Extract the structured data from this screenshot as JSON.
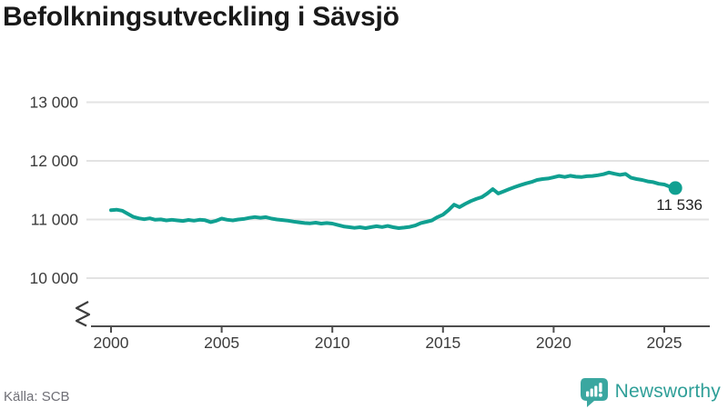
{
  "title": "Befolkningsutveckling i Sävsjö",
  "footer": {
    "source": "Källa: SCB",
    "brand": "Newsworthy",
    "brand_color": "#3aa7a0",
    "brand_text_color": "#2f9f98"
  },
  "chart_data": {
    "type": "line",
    "title": "Befolkningsutveckling i Sävsjö",
    "xlabel": "",
    "ylabel": "",
    "grid": "horizontal",
    "axis_break": true,
    "legend": "none",
    "xlim": [
      1999.5,
      2026.5
    ],
    "ylim": [
      10000,
      13000
    ],
    "grid_color": "#e3e3e3",
    "axis_color": "#4d4d4d",
    "label_color": "#3d3d3d",
    "annotation_color": "#1f1f1f",
    "end_label": "11 536",
    "end_value": 11536,
    "y_ticks": [
      {
        "value": 13000,
        "label": "13 000"
      },
      {
        "value": 12000,
        "label": "12 000"
      },
      {
        "value": 11000,
        "label": "11 000"
      },
      {
        "value": 10000,
        "label": "10 000"
      }
    ],
    "x_ticks": [
      {
        "value": 2000,
        "label": "2000"
      },
      {
        "value": 2005,
        "label": "2005"
      },
      {
        "value": 2010,
        "label": "2010"
      },
      {
        "value": 2015,
        "label": "2015"
      },
      {
        "value": 2020,
        "label": "2020"
      },
      {
        "value": 2025,
        "label": "2025"
      }
    ],
    "series": [
      {
        "name": "Befolkning i Sävsjö",
        "color": "#10a091",
        "points": [
          [
            2000.0,
            11160
          ],
          [
            2000.25,
            11168
          ],
          [
            2000.5,
            11150
          ],
          [
            2000.75,
            11100
          ],
          [
            2001.0,
            11046
          ],
          [
            2001.25,
            11020
          ],
          [
            2001.5,
            11005
          ],
          [
            2001.75,
            11020
          ],
          [
            2002.0,
            10995
          ],
          [
            2002.25,
            11002
          ],
          [
            2002.5,
            10985
          ],
          [
            2002.75,
            10995
          ],
          [
            2003.0,
            10985
          ],
          [
            2003.25,
            10975
          ],
          [
            2003.5,
            10992
          ],
          [
            2003.75,
            10980
          ],
          [
            2004.0,
            10996
          ],
          [
            2004.25,
            10988
          ],
          [
            2004.5,
            10955
          ],
          [
            2004.75,
            10978
          ],
          [
            2005.0,
            11015
          ],
          [
            2005.25,
            10995
          ],
          [
            2005.5,
            10985
          ],
          [
            2005.75,
            11000
          ],
          [
            2006.0,
            11010
          ],
          [
            2006.25,
            11028
          ],
          [
            2006.5,
            11042
          ],
          [
            2006.75,
            11030
          ],
          [
            2007.0,
            11040
          ],
          [
            2007.25,
            11015
          ],
          [
            2007.5,
            11000
          ],
          [
            2007.75,
            10990
          ],
          [
            2008.0,
            10980
          ],
          [
            2008.25,
            10965
          ],
          [
            2008.5,
            10952
          ],
          [
            2008.75,
            10940
          ],
          [
            2009.0,
            10935
          ],
          [
            2009.25,
            10946
          ],
          [
            2009.5,
            10930
          ],
          [
            2009.75,
            10940
          ],
          [
            2010.0,
            10930
          ],
          [
            2010.25,
            10905
          ],
          [
            2010.5,
            10882
          ],
          [
            2010.75,
            10870
          ],
          [
            2011.0,
            10858
          ],
          [
            2011.25,
            10868
          ],
          [
            2011.5,
            10852
          ],
          [
            2011.75,
            10870
          ],
          [
            2012.0,
            10885
          ],
          [
            2012.25,
            10872
          ],
          [
            2012.5,
            10890
          ],
          [
            2012.75,
            10868
          ],
          [
            2013.0,
            10852
          ],
          [
            2013.25,
            10862
          ],
          [
            2013.5,
            10875
          ],
          [
            2013.75,
            10898
          ],
          [
            2014.0,
            10940
          ],
          [
            2014.25,
            10962
          ],
          [
            2014.5,
            10985
          ],
          [
            2014.75,
            11040
          ],
          [
            2015.0,
            11082
          ],
          [
            2015.25,
            11160
          ],
          [
            2015.5,
            11252
          ],
          [
            2015.75,
            11211
          ],
          [
            2016.0,
            11265
          ],
          [
            2016.25,
            11313
          ],
          [
            2016.5,
            11350
          ],
          [
            2016.75,
            11381
          ],
          [
            2017.0,
            11443
          ],
          [
            2017.25,
            11520
          ],
          [
            2017.5,
            11443
          ],
          [
            2017.75,
            11480
          ],
          [
            2018.0,
            11520
          ],
          [
            2018.25,
            11553
          ],
          [
            2018.5,
            11586
          ],
          [
            2018.75,
            11615
          ],
          [
            2019.0,
            11640
          ],
          [
            2019.25,
            11674
          ],
          [
            2019.5,
            11690
          ],
          [
            2019.75,
            11699
          ],
          [
            2020.0,
            11720
          ],
          [
            2020.25,
            11742
          ],
          [
            2020.5,
            11725
          ],
          [
            2020.75,
            11745
          ],
          [
            2021.0,
            11730
          ],
          [
            2021.25,
            11724
          ],
          [
            2021.5,
            11738
          ],
          [
            2021.75,
            11742
          ],
          [
            2022.0,
            11755
          ],
          [
            2022.25,
            11772
          ],
          [
            2022.5,
            11802
          ],
          [
            2022.75,
            11780
          ],
          [
            2023.0,
            11762
          ],
          [
            2023.25,
            11776
          ],
          [
            2023.5,
            11712
          ],
          [
            2023.75,
            11690
          ],
          [
            2024.0,
            11674
          ],
          [
            2024.25,
            11650
          ],
          [
            2024.5,
            11637
          ],
          [
            2024.75,
            11610
          ],
          [
            2025.0,
            11597
          ],
          [
            2025.25,
            11560
          ],
          [
            2025.5,
            11536
          ]
        ]
      }
    ]
  }
}
